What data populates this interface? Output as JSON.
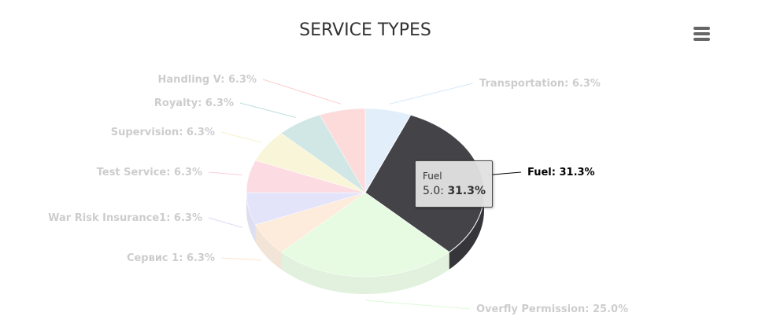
{
  "menu": {
    "icon": "hamburger-menu-icon"
  },
  "tooltip": {
    "name": "Fuel",
    "value": "5.0",
    "percent": "31.3%"
  },
  "colors": {
    "Transportation": "#7cb5ec",
    "Fuel": "#434348",
    "Overfly Permission": "#90ed7d",
    "Сервис 1": "#f7a35c",
    "War Risk Insurance1": "#8085e9",
    "Test Service": "#f15c80",
    "Supervision": "#e4d354",
    "Royalty": "#2b908f",
    "Handling V": "#f45b5b"
  },
  "chart_data": {
    "type": "pie",
    "title": "SERVICE TYPES",
    "three_d": true,
    "hovered": "Fuel",
    "slices": [
      {
        "name": "Transportation",
        "value": 1,
        "percent": 6.3,
        "label": "Transportation: 6.3%"
      },
      {
        "name": "Fuel",
        "value": 5,
        "percent": 31.3,
        "label": "Fuel: 31.3%"
      },
      {
        "name": "Overfly Permission",
        "value": 4,
        "percent": 25.0,
        "label": "Overfly Permission: 25.0%"
      },
      {
        "name": "Сервис 1",
        "value": 1,
        "percent": 6.3,
        "label": "Сервис 1: 6.3%"
      },
      {
        "name": "War Risk Insurance1",
        "value": 1,
        "percent": 6.3,
        "label": "War Risk Insurance1: 6.3%"
      },
      {
        "name": "Test Service",
        "value": 1,
        "percent": 6.3,
        "label": "Test Service: 6.3%"
      },
      {
        "name": "Supervision",
        "value": 1,
        "percent": 6.3,
        "label": "Supervision: 6.3%"
      },
      {
        "name": "Royalty",
        "value": 1,
        "percent": 6.3,
        "label": "Royalty: 6.3%"
      },
      {
        "name": "Handling V",
        "value": 1,
        "percent": 6.3,
        "label": "Handling V: 6.3%"
      }
    ]
  }
}
